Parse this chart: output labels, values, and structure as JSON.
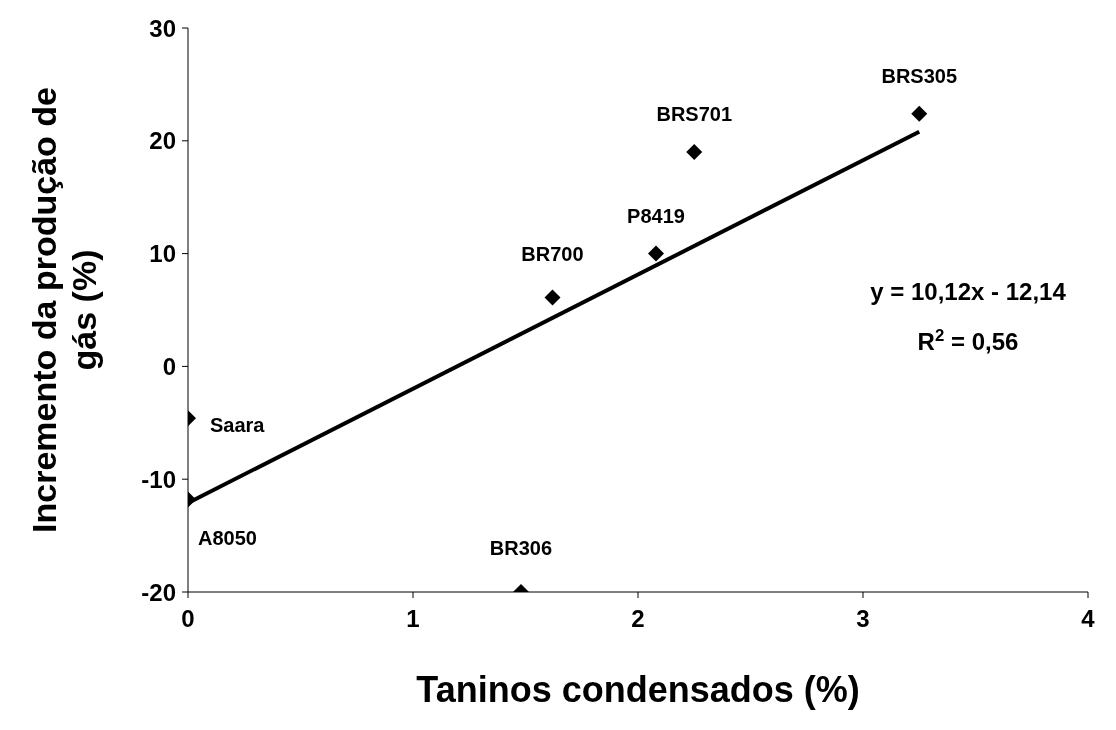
{
  "chart_data": {
    "type": "scatter",
    "xlabel": "Taninos condensados (%)",
    "ylabel": "Incremento da produção de gás (%)",
    "xlim": [
      0,
      4
    ],
    "xticks": [
      0,
      1,
      2,
      3,
      4
    ],
    "ylim": [
      -20,
      30
    ],
    "yticks": [
      -20,
      -10,
      0,
      10,
      20,
      30
    ],
    "marker": "diamond",
    "series": [
      {
        "color": "#000000",
        "x": [
          0,
          0,
          1.48,
          1.62,
          2.08,
          2.25,
          3.25
        ],
        "values": [
          -4.6,
          -11.8,
          -20,
          6.1,
          10,
          19,
          22.4
        ]
      },
      {
        "type": "line",
        "color": "#000000",
        "x": [
          0,
          3.25
        ],
        "values": [
          -12.1,
          20.8
        ],
        "marker": "none",
        "line_style": "solid"
      }
    ],
    "annotations": [
      {
        "text": "Saara",
        "x": 0,
        "y": -4.6
      },
      {
        "text": "A8050",
        "x": 0,
        "y": -11.8
      },
      {
        "text": "BR306",
        "x": 1.48,
        "y": -20
      },
      {
        "text": "BR700",
        "x": 1.62,
        "y": 6.1
      },
      {
        "text": "P8419",
        "x": 2.08,
        "y": 10
      },
      {
        "text": "BRS701",
        "x": 2.25,
        "y": 19
      },
      {
        "text": "BRS305",
        "x": 3.25,
        "y": 22.4
      },
      "y = 10,12x - 12,14",
      "R$^{2}$ = 0,56"
    ]
  }
}
